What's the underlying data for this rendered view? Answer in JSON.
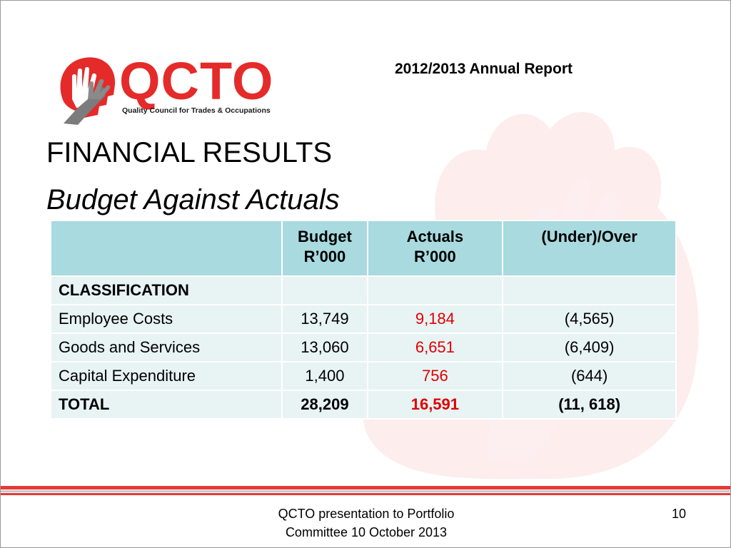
{
  "logo": {
    "name": "QCTO",
    "tagline": "Quality Council for Trades & Occupations"
  },
  "header": {
    "report_title": "2012/2013 Annual Report"
  },
  "slide": {
    "title": "FINANCIAL RESULTS",
    "subtitle": "Budget Against Actuals"
  },
  "table": {
    "columns": [
      "",
      "Budget\nR’000",
      "Actuals\nR’000",
      "(Under)/Over"
    ],
    "col_budget": {
      "line1": "Budget",
      "line2": "R’000"
    },
    "col_actuals": {
      "line1": "Actuals",
      "line2": "R’000"
    },
    "col_variance": "(Under)/Over",
    "rows": [
      {
        "label": "CLASSIFICATION",
        "budget": "",
        "actuals": "",
        "variance": ""
      },
      {
        "label": "Employee Costs",
        "budget": "13,749",
        "actuals": "9,184",
        "variance": "(4,565)"
      },
      {
        "label": "Goods and Services",
        "budget": "13,060",
        "actuals": "6,651",
        "variance": "(6,409)"
      },
      {
        "label": "Capital Expenditure",
        "budget": "1,400",
        "actuals": "756",
        "variance": "(644)"
      },
      {
        "label": "TOTAL",
        "budget": "28,209",
        "actuals": "16,591",
        "variance": "(11, 618)"
      }
    ]
  },
  "footer": {
    "line1": "QCTO presentation to Portfolio",
    "line2": "Committee 10 October 2013",
    "page_number": "10"
  },
  "colors": {
    "brand_red": "#e52a2a",
    "table_header": "#a8dadf",
    "table_row": "#e8f3f4",
    "actuals_red": "#e00000"
  },
  "icons": [
    "hand-head-logo-icon",
    "hand-watermark-icon"
  ]
}
